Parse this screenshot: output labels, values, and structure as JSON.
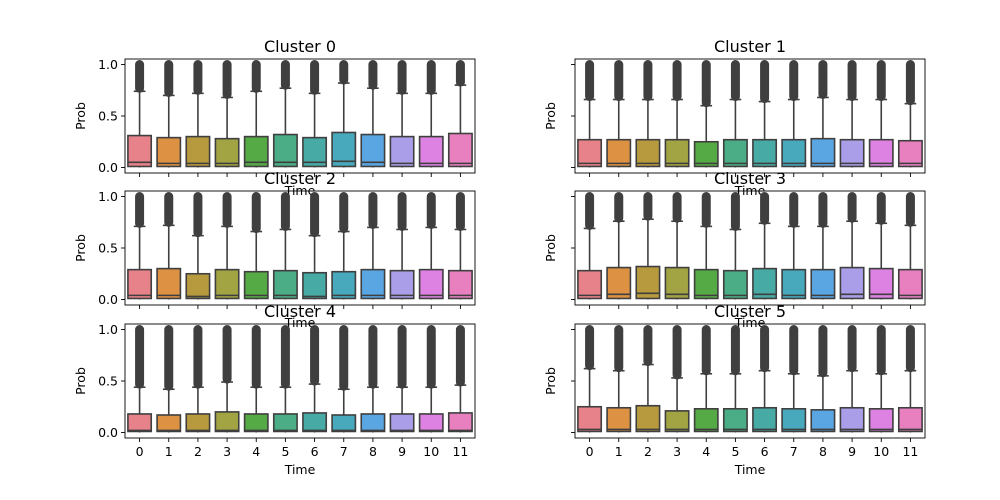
{
  "chart_data": {
    "type": "box",
    "categories": [
      "0",
      "1",
      "2",
      "3",
      "4",
      "5",
      "6",
      "7",
      "8",
      "9",
      "10",
      "11"
    ],
    "colors": [
      "#e8828a",
      "#dd9143",
      "#b89a3e",
      "#a2a343",
      "#56aa45",
      "#4aad85",
      "#47aaa4",
      "#48a9bd",
      "#5aa6e2",
      "#aa9ee8",
      "#dd82e2",
      "#e880c0"
    ],
    "xlabel": "Time",
    "ylabel": "Prob",
    "ylim": [
      0,
      1
    ],
    "yticks": [
      "0.0",
      "0.5",
      "1.0"
    ],
    "panels": [
      {
        "title": "Cluster 0",
        "show_y_ticklabels": true,
        "show_x_ticklabels": false,
        "q1": [
          0.01,
          0.01,
          0.01,
          0.01,
          0.01,
          0.01,
          0.01,
          0.01,
          0.01,
          0.01,
          0.01,
          0.01
        ],
        "median": [
          0.05,
          0.04,
          0.04,
          0.04,
          0.05,
          0.05,
          0.05,
          0.06,
          0.05,
          0.04,
          0.04,
          0.04
        ],
        "q3": [
          0.31,
          0.29,
          0.3,
          0.28,
          0.3,
          0.32,
          0.29,
          0.34,
          0.32,
          0.3,
          0.3,
          0.33
        ],
        "whisker_high": [
          0.74,
          0.7,
          0.72,
          0.68,
          0.74,
          0.77,
          0.72,
          0.82,
          0.77,
          0.72,
          0.72,
          0.8
        ]
      },
      {
        "title": "Cluster 1",
        "show_y_ticklabels": false,
        "show_x_ticklabels": false,
        "q1": [
          0.01,
          0.01,
          0.01,
          0.01,
          0.01,
          0.01,
          0.01,
          0.01,
          0.01,
          0.01,
          0.01,
          0.01
        ],
        "median": [
          0.04,
          0.04,
          0.04,
          0.04,
          0.04,
          0.04,
          0.04,
          0.04,
          0.04,
          0.04,
          0.04,
          0.04
        ],
        "q3": [
          0.27,
          0.27,
          0.27,
          0.27,
          0.25,
          0.27,
          0.27,
          0.27,
          0.28,
          0.27,
          0.27,
          0.26
        ],
        "whisker_high": [
          0.66,
          0.66,
          0.66,
          0.66,
          0.6,
          0.66,
          0.64,
          0.66,
          0.68,
          0.66,
          0.66,
          0.62
        ]
      },
      {
        "title": "Cluster 2",
        "show_y_ticklabels": true,
        "show_x_ticklabels": false,
        "q1": [
          0.01,
          0.01,
          0.01,
          0.01,
          0.01,
          0.01,
          0.01,
          0.01,
          0.01,
          0.01,
          0.01,
          0.01
        ],
        "median": [
          0.04,
          0.04,
          0.03,
          0.04,
          0.04,
          0.04,
          0.03,
          0.04,
          0.04,
          0.04,
          0.04,
          0.04
        ],
        "q3": [
          0.29,
          0.3,
          0.25,
          0.29,
          0.27,
          0.28,
          0.26,
          0.27,
          0.29,
          0.28,
          0.29,
          0.28
        ],
        "whisker_high": [
          0.71,
          0.72,
          0.62,
          0.71,
          0.66,
          0.68,
          0.62,
          0.66,
          0.7,
          0.68,
          0.7,
          0.68
        ]
      },
      {
        "title": "Cluster 3",
        "show_y_ticklabels": false,
        "show_x_ticklabels": false,
        "q1": [
          0.01,
          0.01,
          0.01,
          0.01,
          0.01,
          0.01,
          0.01,
          0.01,
          0.01,
          0.01,
          0.01,
          0.01
        ],
        "median": [
          0.04,
          0.05,
          0.06,
          0.05,
          0.04,
          0.04,
          0.05,
          0.04,
          0.04,
          0.05,
          0.05,
          0.04
        ],
        "q3": [
          0.28,
          0.31,
          0.32,
          0.31,
          0.29,
          0.28,
          0.3,
          0.29,
          0.29,
          0.31,
          0.3,
          0.29
        ],
        "whisker_high": [
          0.69,
          0.76,
          0.78,
          0.76,
          0.71,
          0.68,
          0.74,
          0.71,
          0.71,
          0.76,
          0.74,
          0.72
        ]
      },
      {
        "title": "Cluster 4",
        "show_y_ticklabels": true,
        "show_x_ticklabels": true,
        "q1": [
          0.01,
          0.01,
          0.01,
          0.01,
          0.01,
          0.01,
          0.01,
          0.01,
          0.01,
          0.01,
          0.01,
          0.01
        ],
        "median": [
          0.02,
          0.02,
          0.02,
          0.02,
          0.02,
          0.02,
          0.02,
          0.02,
          0.02,
          0.02,
          0.02,
          0.02
        ],
        "q3": [
          0.18,
          0.17,
          0.18,
          0.2,
          0.18,
          0.18,
          0.19,
          0.17,
          0.18,
          0.18,
          0.18,
          0.19
        ],
        "whisker_high": [
          0.44,
          0.42,
          0.44,
          0.49,
          0.44,
          0.44,
          0.47,
          0.42,
          0.44,
          0.44,
          0.44,
          0.46
        ]
      },
      {
        "title": "Cluster 5",
        "show_y_ticklabels": false,
        "show_x_ticklabels": true,
        "q1": [
          0.01,
          0.01,
          0.01,
          0.01,
          0.01,
          0.01,
          0.01,
          0.01,
          0.01,
          0.01,
          0.01,
          0.01
        ],
        "median": [
          0.03,
          0.03,
          0.03,
          0.03,
          0.03,
          0.03,
          0.03,
          0.03,
          0.03,
          0.03,
          0.03,
          0.03
        ],
        "q3": [
          0.25,
          0.24,
          0.26,
          0.21,
          0.23,
          0.23,
          0.24,
          0.23,
          0.22,
          0.24,
          0.23,
          0.24
        ],
        "whisker_high": [
          0.62,
          0.6,
          0.66,
          0.53,
          0.57,
          0.57,
          0.6,
          0.57,
          0.55,
          0.6,
          0.57,
          0.6
        ]
      }
    ]
  }
}
